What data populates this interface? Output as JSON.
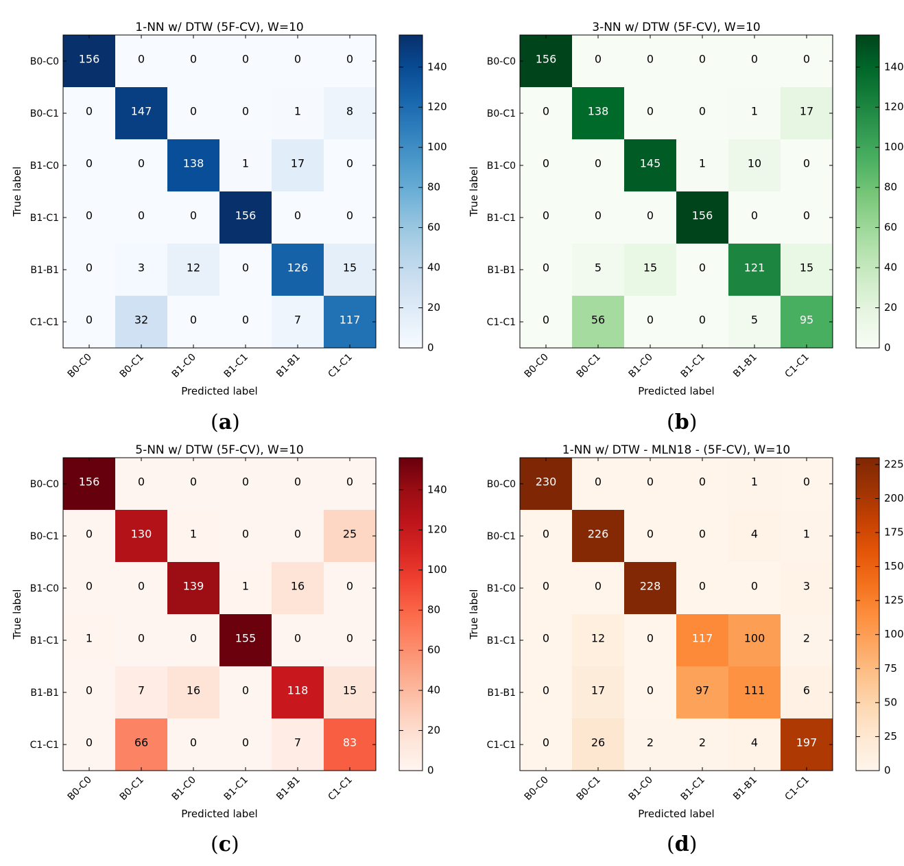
{
  "chart_data": [
    {
      "type": "heatmap",
      "panel_id": "a",
      "title": "1-NN w/ DTW (5F-CV), W=10",
      "xlabel": "Predicted label",
      "ylabel": "True label",
      "categories": [
        "B0-C0",
        "B0-C1",
        "B1-C0",
        "B1-C1",
        "B1-B1",
        "C1-C1"
      ],
      "matrix": [
        [
          156,
          0,
          0,
          0,
          0,
          0
        ],
        [
          0,
          147,
          0,
          0,
          1,
          8
        ],
        [
          0,
          0,
          138,
          1,
          17,
          0
        ],
        [
          0,
          0,
          0,
          156,
          0,
          0
        ],
        [
          0,
          3,
          12,
          0,
          126,
          15
        ],
        [
          0,
          32,
          0,
          0,
          7,
          117
        ]
      ],
      "colormap": "Blues",
      "colorbar_range": [
        0,
        156
      ],
      "colorbar_ticks": [
        0,
        20,
        40,
        60,
        80,
        100,
        120,
        140
      ]
    },
    {
      "type": "heatmap",
      "panel_id": "b",
      "title": "3-NN w/ DTW (5F-CV), W=10",
      "xlabel": "Predicted label",
      "ylabel": "True label",
      "categories": [
        "B0-C0",
        "B0-C1",
        "B1-C0",
        "B1-C1",
        "B1-B1",
        "C1-C1"
      ],
      "matrix": [
        [
          156,
          0,
          0,
          0,
          0,
          0
        ],
        [
          0,
          138,
          0,
          0,
          1,
          17
        ],
        [
          0,
          0,
          145,
          1,
          10,
          0
        ],
        [
          0,
          0,
          0,
          156,
          0,
          0
        ],
        [
          0,
          5,
          15,
          0,
          121,
          15
        ],
        [
          0,
          56,
          0,
          0,
          5,
          95
        ]
      ],
      "colormap": "Greens",
      "colorbar_range": [
        0,
        156
      ],
      "colorbar_ticks": [
        0,
        20,
        40,
        60,
        80,
        100,
        120,
        140
      ]
    },
    {
      "type": "heatmap",
      "panel_id": "c",
      "title": "5-NN w/ DTW (5F-CV), W=10",
      "xlabel": "Predicted label",
      "ylabel": "True label",
      "categories": [
        "B0-C0",
        "B0-C1",
        "B1-C0",
        "B1-C1",
        "B1-B1",
        "C1-C1"
      ],
      "matrix": [
        [
          156,
          0,
          0,
          0,
          0,
          0
        ],
        [
          0,
          130,
          1,
          0,
          0,
          25
        ],
        [
          0,
          0,
          139,
          1,
          16,
          0
        ],
        [
          1,
          0,
          0,
          155,
          0,
          0
        ],
        [
          0,
          7,
          16,
          0,
          118,
          15
        ],
        [
          0,
          66,
          0,
          0,
          7,
          83
        ]
      ],
      "colormap": "Reds",
      "colorbar_range": [
        0,
        156
      ],
      "colorbar_ticks": [
        0,
        20,
        40,
        60,
        80,
        100,
        120,
        140
      ]
    },
    {
      "type": "heatmap",
      "panel_id": "d",
      "title": "1-NN w/ DTW - MLN18 - (5F-CV), W=10",
      "xlabel": "Predicted label",
      "ylabel": "True label",
      "categories": [
        "B0-C0",
        "B0-C1",
        "B1-C0",
        "B1-C1",
        "B1-B1",
        "C1-C1"
      ],
      "matrix": [
        [
          230,
          0,
          0,
          0,
          1,
          0
        ],
        [
          0,
          226,
          0,
          0,
          4,
          1
        ],
        [
          0,
          0,
          228,
          0,
          0,
          3
        ],
        [
          0,
          12,
          0,
          117,
          100,
          2
        ],
        [
          0,
          17,
          0,
          97,
          111,
          6
        ],
        [
          0,
          26,
          2,
          2,
          4,
          197
        ]
      ],
      "colormap": "Oranges",
      "colorbar_range": [
        0,
        230
      ],
      "colorbar_ticks": [
        0,
        25,
        50,
        75,
        100,
        125,
        150,
        175,
        200,
        225
      ]
    }
  ],
  "captions": [
    "a",
    "b",
    "c",
    "d"
  ]
}
